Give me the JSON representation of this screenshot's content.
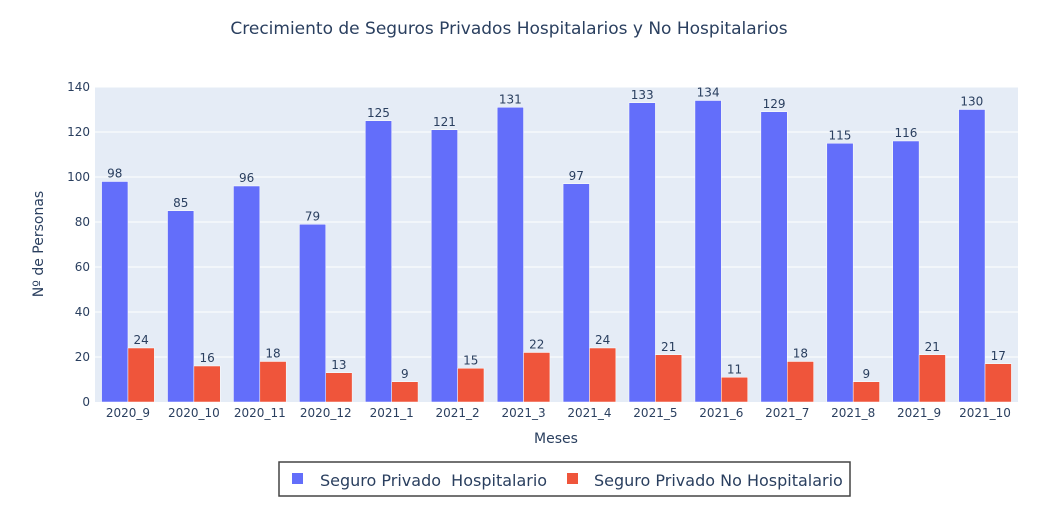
{
  "chart_data": {
    "type": "bar",
    "title": "Crecimiento de Seguros Privados Hospitalarios y No Hospitalarios",
    "xlabel": "Meses",
    "ylabel": "Nº de Personas",
    "ylim": [
      0,
      140
    ],
    "yticks": [
      0,
      20,
      40,
      60,
      80,
      100,
      120,
      140
    ],
    "grid": true,
    "legend_position": "bottom-center",
    "categories": [
      "2020_9",
      "2020_10",
      "2020_11",
      "2020_12",
      "2021_1",
      "2021_2",
      "2021_3",
      "2021_4",
      "2021_5",
      "2021_6",
      "2021_7",
      "2021_8",
      "2021_9",
      "2021_10"
    ],
    "series": [
      {
        "name": "Seguro Privado  Hospitalario",
        "color": "#636efa",
        "values": [
          98,
          85,
          96,
          79,
          125,
          121,
          131,
          97,
          133,
          134,
          129,
          115,
          116,
          130
        ]
      },
      {
        "name": "Seguro Privado No Hospitalario",
        "color": "#ef553b",
        "values": [
          24,
          16,
          18,
          13,
          9,
          15,
          22,
          24,
          21,
          11,
          18,
          9,
          21,
          17
        ]
      }
    ]
  },
  "colors": {
    "plot_background": "#e5ecf6",
    "grid": "#ffffff",
    "text": "#2a3f5f"
  }
}
